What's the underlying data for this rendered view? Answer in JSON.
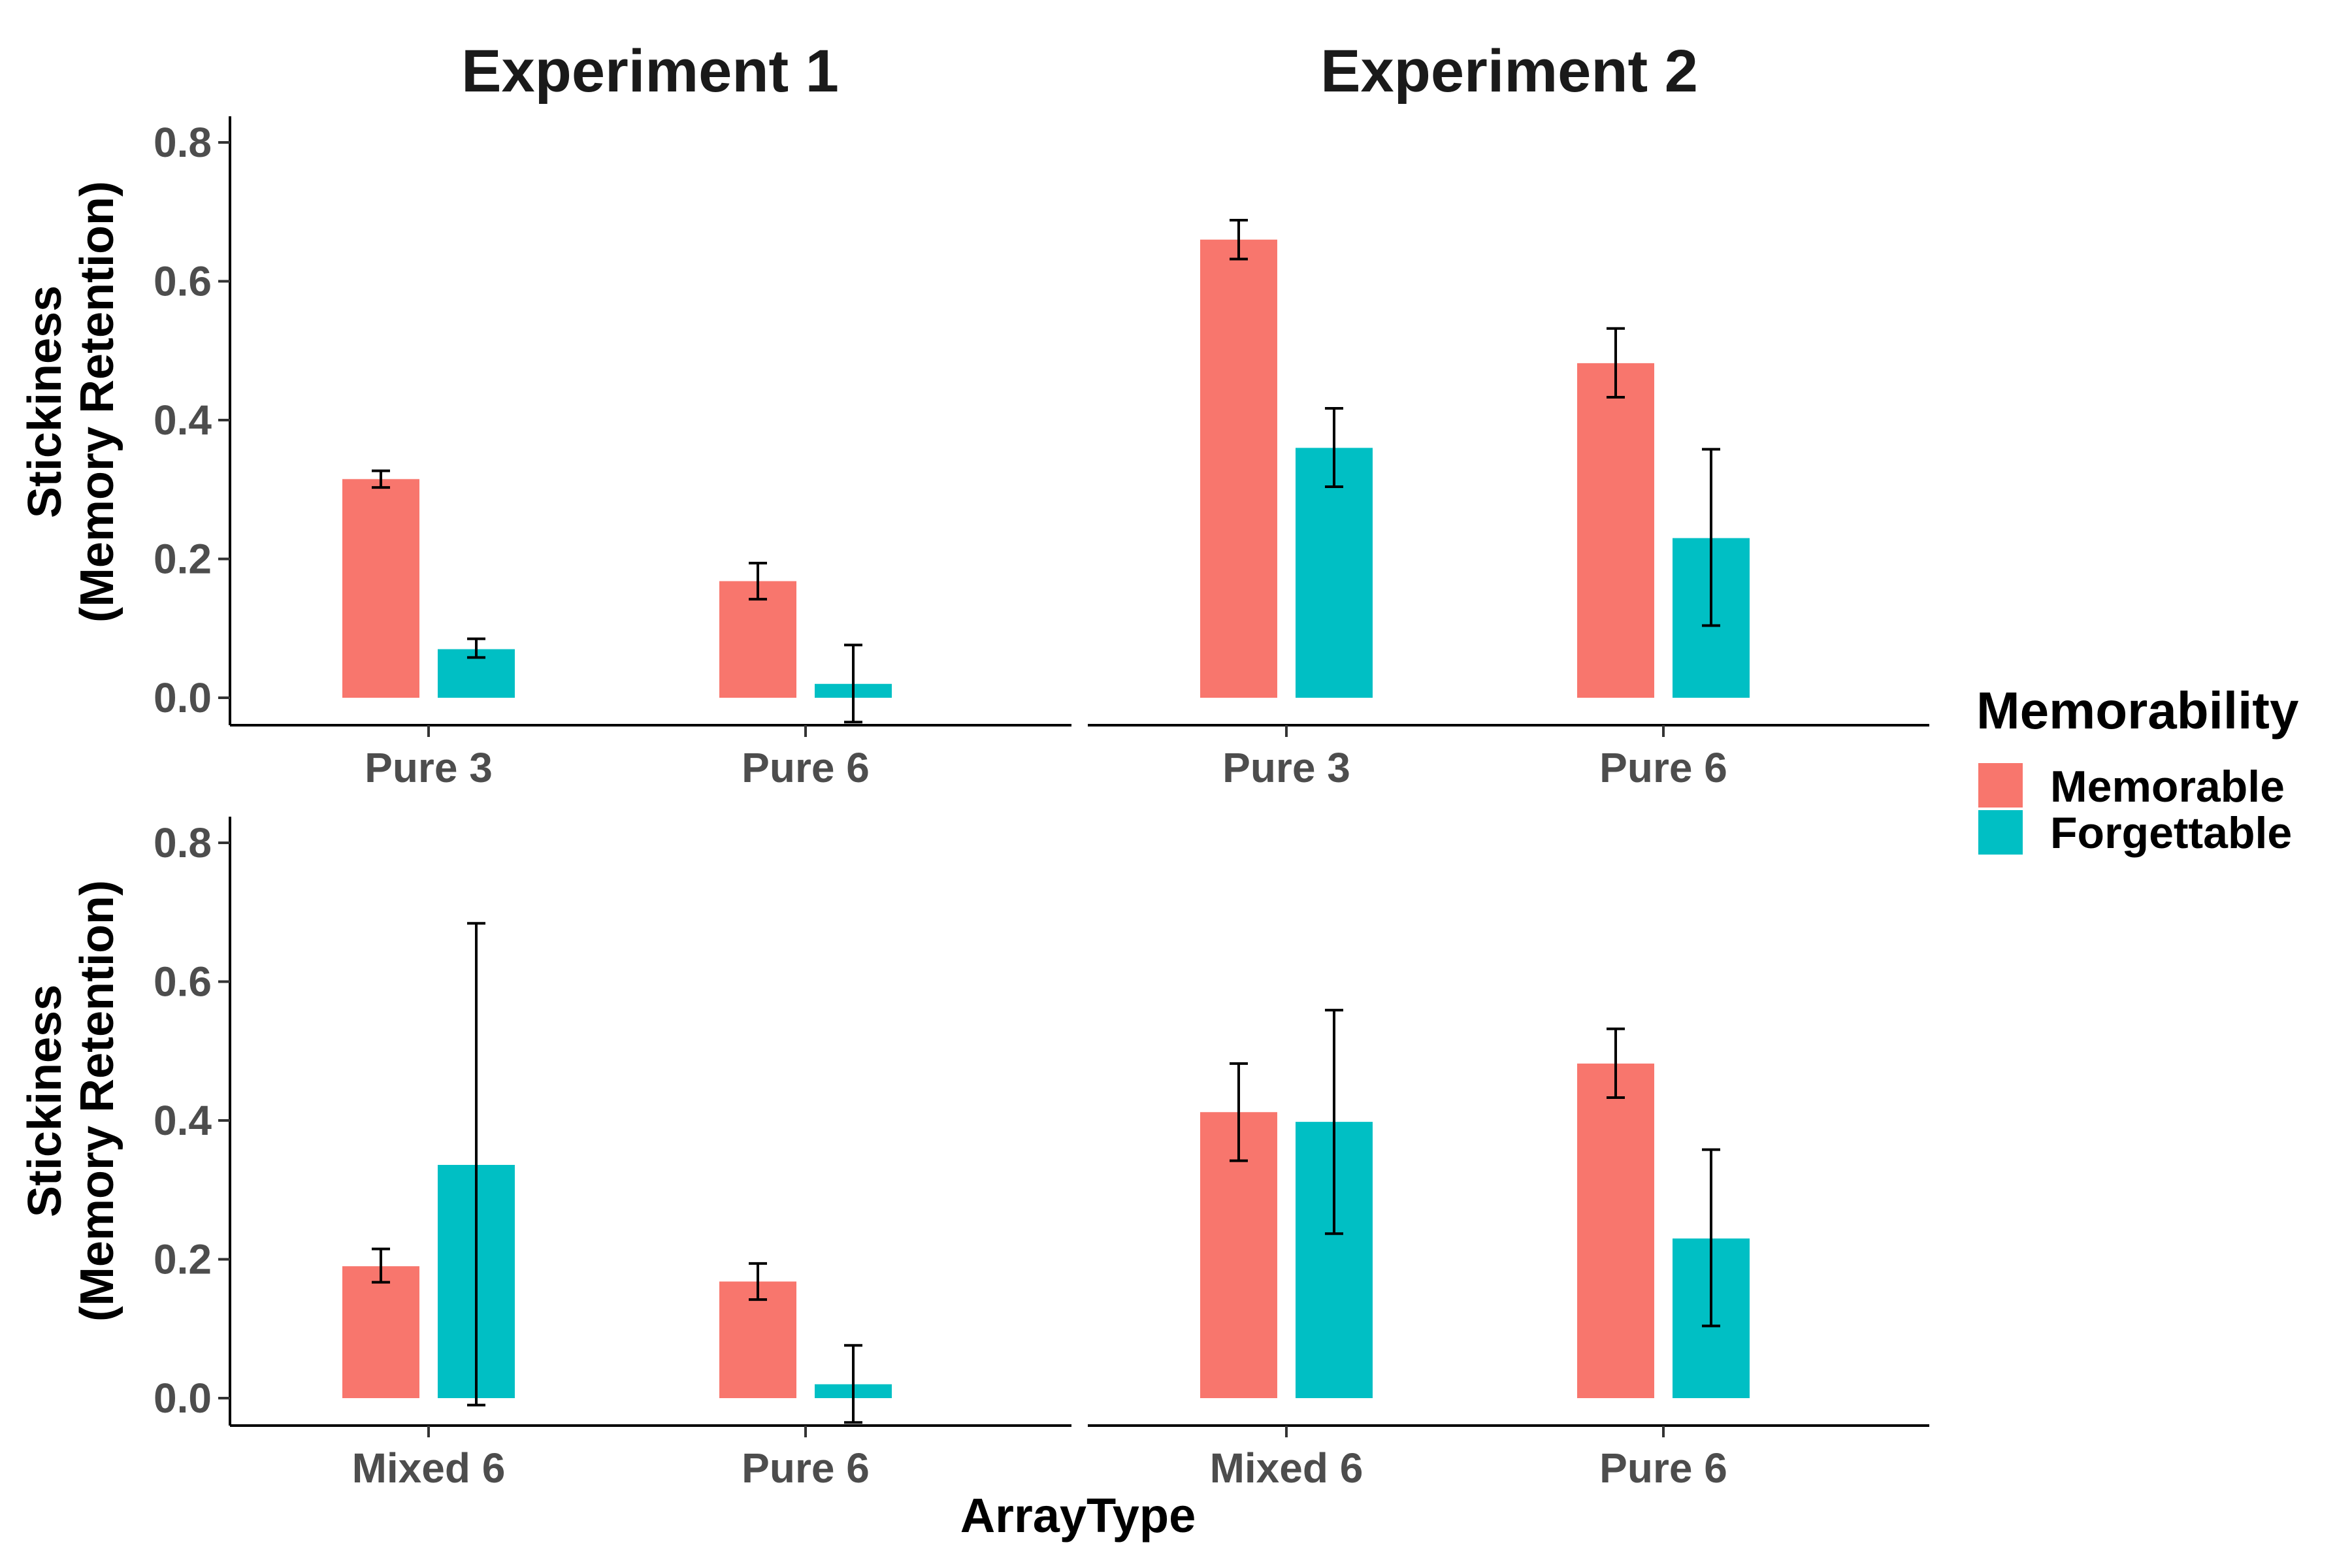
{
  "chart_data": {
    "type": "bar",
    "xlabel": "ArrayType",
    "ylabel_lines": [
      "Stickiness",
      "(Memory Retention)"
    ],
    "ylim": [
      0,
      0.8
    ],
    "yticks": [
      "0.0",
      "0.2",
      "0.4",
      "0.6",
      "0.8"
    ],
    "column_titles": [
      "Experiment 1",
      "Experiment 2"
    ],
    "legend": {
      "title": "Memorability",
      "position": "right",
      "entries": [
        {
          "name": "Memorable",
          "color": "#F8766D"
        },
        {
          "name": "Forgettable",
          "color": "#00BFC4"
        }
      ]
    },
    "grid": false,
    "panels": [
      {
        "column": "Experiment 1",
        "row": 1,
        "categories": [
          "Pure 3",
          "Pure 6"
        ],
        "series": [
          {
            "name": "Memorable",
            "values": [
              0.315,
              0.168
            ],
            "err_low": [
              0.303,
              0.142
            ],
            "err_high": [
              0.327,
              0.194
            ]
          },
          {
            "name": "Forgettable",
            "values": [
              0.07,
              0.02
            ],
            "err_low": [
              0.058,
              -0.035
            ],
            "err_high": [
              0.085,
              0.076
            ]
          }
        ]
      },
      {
        "column": "Experiment 2",
        "row": 1,
        "categories": [
          "Pure 3",
          "Pure 6"
        ],
        "series": [
          {
            "name": "Memorable",
            "values": [
              0.66,
              0.482
            ],
            "err_low": [
              0.632,
              0.433
            ],
            "err_high": [
              0.688,
              0.532
            ]
          },
          {
            "name": "Forgettable",
            "values": [
              0.36,
              0.23
            ],
            "err_low": [
              0.304,
              0.104
            ],
            "err_high": [
              0.417,
              0.358
            ]
          }
        ]
      },
      {
        "column": "Experiment 1",
        "row": 2,
        "categories": [
          "Mixed 6",
          "Pure 6"
        ],
        "series": [
          {
            "name": "Memorable",
            "values": [
              0.19,
              0.168
            ],
            "err_low": [
              0.167,
              0.142
            ],
            "err_high": [
              0.215,
              0.194
            ]
          },
          {
            "name": "Forgettable",
            "values": [
              0.336,
              0.02
            ],
            "err_low": [
              -0.01,
              -0.035
            ],
            "err_high": [
              0.684,
              0.076
            ]
          }
        ]
      },
      {
        "column": "Experiment 2",
        "row": 2,
        "categories": [
          "Mixed 6",
          "Pure 6"
        ],
        "series": [
          {
            "name": "Memorable",
            "values": [
              0.412,
              0.482
            ],
            "err_low": [
              0.342,
              0.433
            ],
            "err_high": [
              0.482,
              0.532
            ]
          },
          {
            "name": "Forgettable",
            "values": [
              0.398,
              0.23
            ],
            "err_low": [
              0.237,
              0.104
            ],
            "err_high": [
              0.559,
              0.358
            ]
          }
        ]
      }
    ]
  }
}
